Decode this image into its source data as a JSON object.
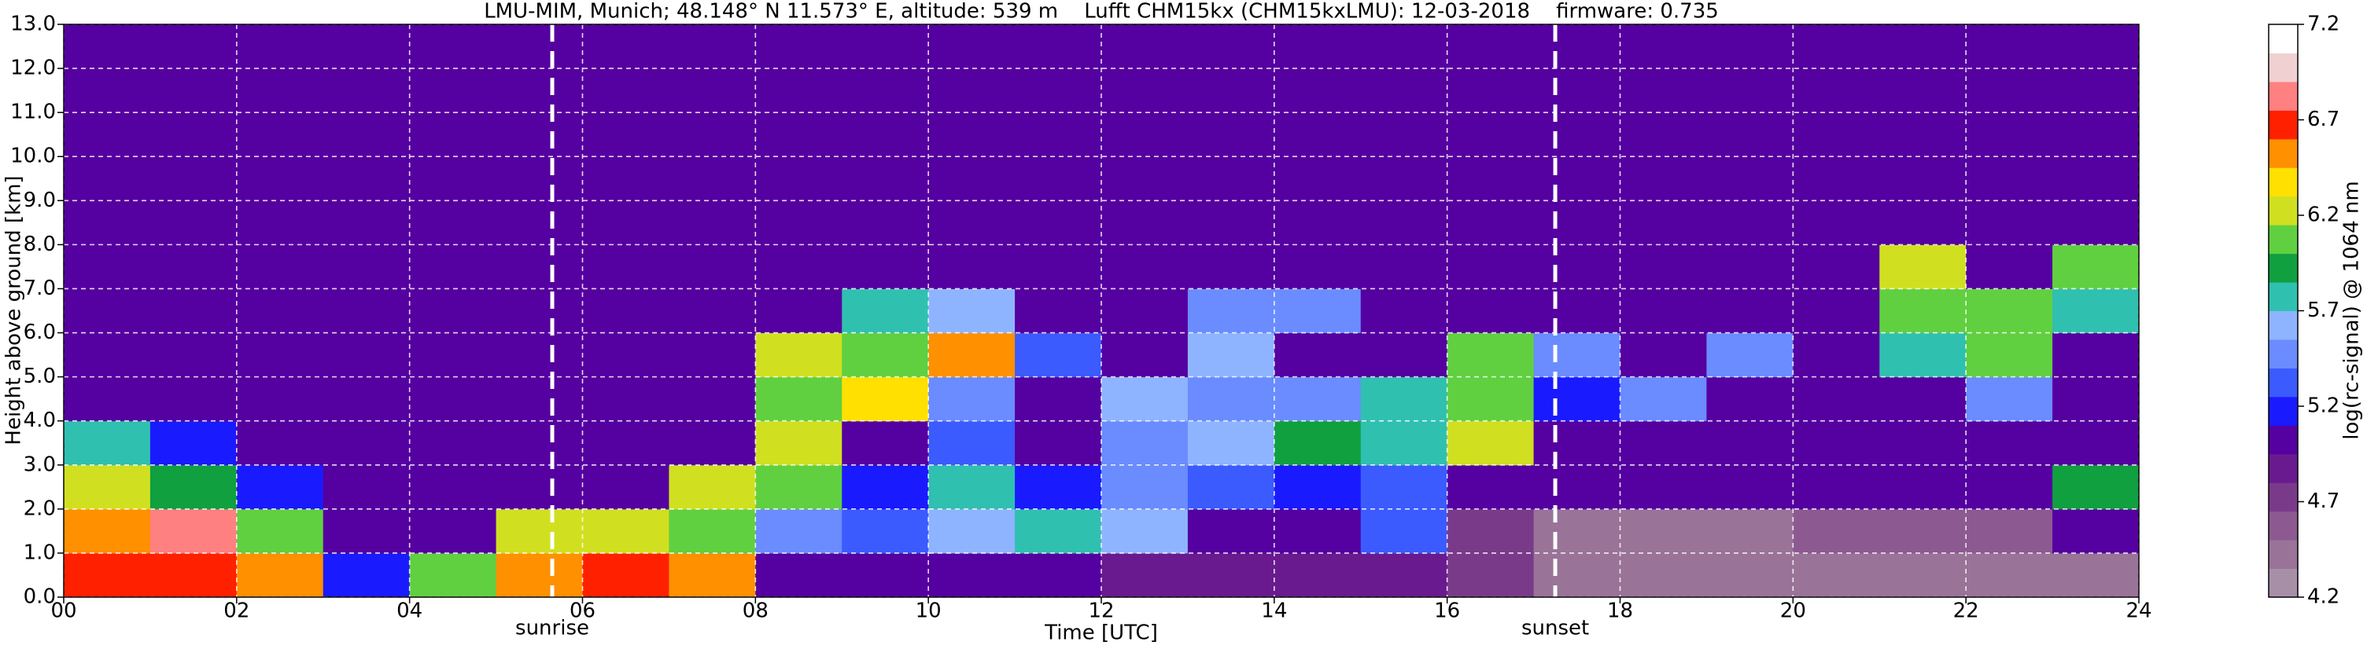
{
  "chart_data": {
    "type": "heatmap",
    "title": "LMU-MIM, Munich; 48.148° N 11.573° E, altitude: 539 m    Lufft CHM15kx (CHM15kxLMU): 12-03-2018    firmware: 0.735",
    "x_label": "Time [UTC]",
    "y_label": "Height above ground [km]",
    "colorbar_label": "log(rc-signal) @ 1064 nm",
    "xlim": [
      0,
      24
    ],
    "xticks": [
      {
        "value": 0,
        "label": "00"
      },
      {
        "value": 2,
        "label": "02"
      },
      {
        "value": 4,
        "label": "04"
      },
      {
        "value": 6,
        "label": "06"
      },
      {
        "value": 8,
        "label": "08"
      },
      {
        "value": 10,
        "label": "10"
      },
      {
        "value": 12,
        "label": "12"
      },
      {
        "value": 14,
        "label": "14"
      },
      {
        "value": 16,
        "label": "16"
      },
      {
        "value": 18,
        "label": "18"
      },
      {
        "value": 20,
        "label": "20"
      },
      {
        "value": 22,
        "label": "22"
      },
      {
        "value": 24,
        "label": "24"
      }
    ],
    "ylim": [
      0,
      13
    ],
    "yticks": [
      {
        "value": 0,
        "label": "0.0"
      },
      {
        "value": 1,
        "label": "1.0"
      },
      {
        "value": 2,
        "label": "2.0"
      },
      {
        "value": 3,
        "label": "3.0"
      },
      {
        "value": 4,
        "label": "4.0"
      },
      {
        "value": 5,
        "label": "5.0"
      },
      {
        "value": 6,
        "label": "6.0"
      },
      {
        "value": 7,
        "label": "7.0"
      },
      {
        "value": 8,
        "label": "8.0"
      },
      {
        "value": 9,
        "label": "9.0"
      },
      {
        "value": 10,
        "label": "10.0"
      },
      {
        "value": 11,
        "label": "11.0"
      },
      {
        "value": 12,
        "label": "12.0"
      },
      {
        "value": 13,
        "label": "13.0"
      }
    ],
    "grid": true,
    "zlim": [
      4.2,
      7.2
    ],
    "zticks": [
      4.2,
      4.7,
      5.2,
      5.7,
      6.2,
      6.7,
      7.2
    ],
    "colormap": [
      "#a78fa8",
      "#9a7399",
      "#8c5a91",
      "#7a3a8a",
      "#6a1a8f",
      "#5500a0",
      "#1a1aff",
      "#3b5bff",
      "#6a8cff",
      "#8fb4ff",
      "#30c0b0",
      "#10a040",
      "#60d040",
      "#d0e020",
      "#ffe000",
      "#ff9000",
      "#ff2000",
      "#ff8080",
      "#f0d0d0",
      "#ffffff"
    ],
    "xbins": [
      0,
      1,
      2,
      3,
      4,
      5,
      6,
      7,
      8,
      9,
      10,
      11,
      12,
      13,
      14,
      15,
      16,
      17,
      18,
      19,
      20,
      21,
      22,
      23,
      24
    ],
    "ybins": [
      0,
      1,
      2,
      3,
      4,
      5,
      6,
      7,
      8,
      9,
      10,
      11,
      12,
      13
    ],
    "z": [
      [
        6.7,
        6.7,
        6.5,
        5.2,
        6.0,
        6.6,
        6.7,
        6.5,
        5.0,
        5.0,
        5.1,
        5.1,
        4.9,
        4.9,
        4.9,
        4.9,
        4.8,
        4.5,
        4.5,
        4.5,
        4.5,
        4.5,
        4.5,
        4.5
      ],
      [
        6.6,
        6.8,
        6.0,
        5.0,
        5.0,
        6.2,
        6.3,
        6.0,
        5.5,
        5.3,
        5.6,
        5.8,
        5.6,
        5.0,
        5.0,
        5.3,
        4.8,
        4.5,
        4.5,
        4.5,
        4.6,
        4.6,
        4.6,
        5.0
      ],
      [
        6.3,
        5.9,
        5.2,
        5.0,
        5.0,
        5.0,
        5.1,
        6.3,
        6.0,
        5.2,
        5.8,
        5.2,
        5.4,
        5.3,
        5.2,
        5.3,
        5.0,
        5.0,
        5.0,
        5.0,
        5.0,
        5.0,
        5.0,
        5.9
      ],
      [
        5.8,
        5.2,
        5.0,
        5.0,
        5.0,
        5.0,
        5.0,
        5.0,
        6.3,
        5.0,
        5.3,
        5.0,
        5.5,
        5.6,
        5.9,
        5.7,
        6.2,
        5.0,
        5.0,
        5.0,
        5.0,
        5.0,
        5.0,
        5.0
      ],
      [
        5.0,
        5.0,
        5.0,
        5.0,
        5.0,
        5.0,
        5.0,
        5.0,
        6.0,
        6.4,
        5.4,
        5.0,
        5.6,
        5.5,
        5.4,
        5.8,
        6.0,
        5.2,
        5.4,
        5.0,
        5.0,
        5.0,
        5.5,
        5.0
      ],
      [
        5.0,
        5.0,
        5.0,
        5.0,
        5.0,
        5.0,
        5.0,
        5.0,
        6.3,
        6.1,
        6.5,
        5.3,
        5.0,
        5.6,
        5.0,
        5.0,
        6.0,
        5.4,
        5.0,
        5.4,
        5.0,
        5.8,
        6.0,
        5.0
      ],
      [
        5.0,
        5.0,
        5.0,
        5.0,
        5.0,
        5.0,
        5.0,
        5.0,
        5.0,
        5.7,
        5.6,
        5.0,
        5.0,
        5.5,
        5.4,
        5.0,
        5.0,
        5.0,
        5.0,
        5.0,
        5.0,
        6.0,
        6.0,
        5.8
      ],
      [
        5.0,
        5.0,
        5.0,
        5.0,
        5.0,
        5.0,
        5.0,
        5.0,
        5.0,
        5.0,
        5.0,
        5.0,
        5.0,
        5.0,
        5.0,
        5.0,
        5.0,
        5.0,
        5.0,
        5.0,
        5.0,
        6.3,
        5.0,
        6.0
      ],
      [
        5.0,
        5.0,
        5.0,
        5.0,
        5.0,
        5.0,
        5.0,
        5.0,
        5.0,
        5.0,
        5.0,
        5.0,
        5.0,
        5.0,
        5.0,
        5.0,
        5.0,
        5.0,
        5.0,
        5.0,
        5.0,
        5.0,
        5.0,
        5.0
      ],
      [
        5.0,
        5.0,
        5.0,
        5.0,
        5.0,
        5.0,
        5.0,
        5.0,
        5.0,
        5.0,
        5.0,
        5.0,
        5.0,
        5.0,
        5.0,
        5.0,
        5.0,
        5.0,
        5.0,
        5.0,
        5.0,
        5.0,
        5.0,
        5.0
      ],
      [
        5.0,
        5.0,
        5.0,
        5.0,
        5.0,
        5.0,
        5.0,
        5.0,
        5.0,
        5.0,
        5.0,
        5.0,
        5.0,
        5.0,
        5.0,
        5.0,
        5.0,
        5.0,
        5.0,
        5.0,
        5.0,
        5.0,
        5.0,
        5.0
      ],
      [
        5.0,
        5.0,
        5.0,
        5.0,
        5.0,
        5.0,
        5.0,
        5.0,
        5.0,
        5.0,
        5.0,
        5.0,
        5.0,
        5.0,
        5.0,
        5.0,
        5.0,
        5.0,
        5.0,
        5.0,
        5.0,
        5.0,
        5.0,
        5.0
      ],
      [
        5.0,
        5.0,
        5.0,
        5.0,
        5.0,
        5.0,
        5.0,
        5.0,
        5.0,
        5.0,
        5.0,
        5.0,
        5.0,
        5.0,
        5.0,
        5.0,
        5.0,
        5.0,
        5.0,
        5.0,
        5.0,
        5.0,
        5.0,
        5.0
      ]
    ],
    "annotations": [
      {
        "text": "sunrise",
        "x": 5.65
      },
      {
        "text": "sunset",
        "x": 17.25
      }
    ]
  }
}
